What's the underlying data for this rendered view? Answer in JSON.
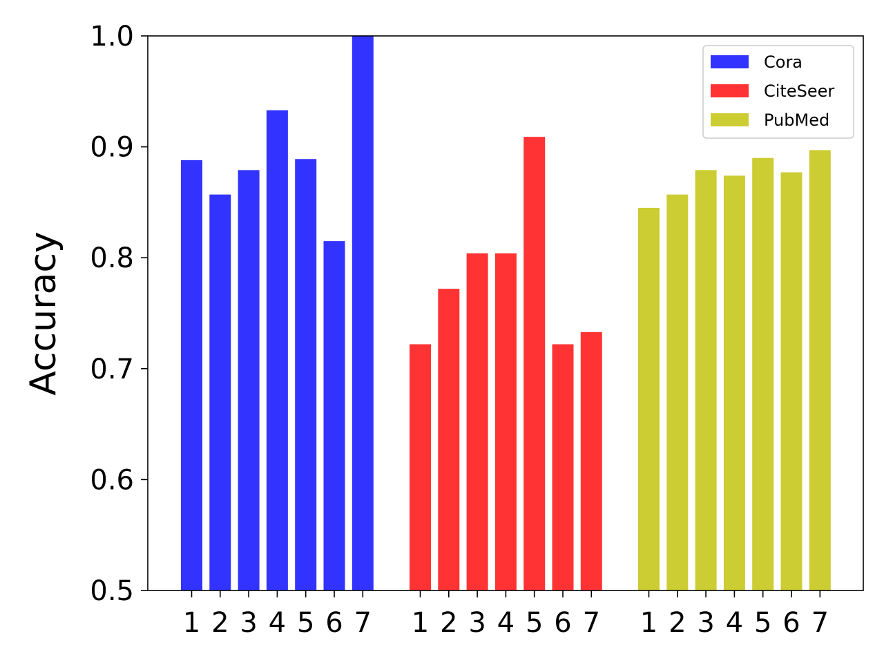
{
  "chart_data": {
    "type": "bar",
    "title": "",
    "xlabel": "",
    "ylabel": "Accuracy",
    "ylim": [
      0.5,
      1.0
    ],
    "yticks": [
      "0.5",
      "0.6",
      "0.7",
      "0.8",
      "0.9",
      "1.0"
    ],
    "categories": [
      "1",
      "2",
      "3",
      "4",
      "5",
      "6",
      "7"
    ],
    "grid": false,
    "legend_position": "top-right",
    "series": [
      {
        "name": "Cora",
        "color": "#3333ff",
        "values": [
          0.888,
          0.857,
          0.879,
          0.933,
          0.889,
          0.815,
          1.0
        ]
      },
      {
        "name": "CiteSeer",
        "color": "#ff3333",
        "values": [
          0.722,
          0.772,
          0.804,
          0.804,
          0.909,
          0.722,
          0.733
        ]
      },
      {
        "name": "PubMed",
        "color": "#cccc33",
        "values": [
          0.845,
          0.857,
          0.879,
          0.874,
          0.89,
          0.877,
          0.897
        ]
      }
    ]
  }
}
